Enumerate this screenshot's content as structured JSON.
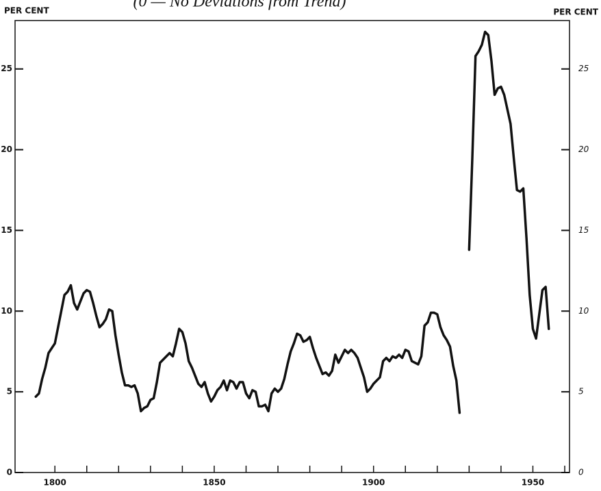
{
  "chart_data": {
    "type": "line",
    "title": "(0 — No Deviations from Trend)",
    "ylabel": "PER CENT",
    "y2label": "PER CENT",
    "x": [
      1794,
      1795,
      1796,
      1797,
      1798,
      1799,
      1800,
      1801,
      1802,
      1803,
      1804,
      1805,
      1806,
      1807,
      1808,
      1809,
      1810,
      1811,
      1812,
      1813,
      1814,
      1815,
      1816,
      1817,
      1818,
      1819,
      1820,
      1821,
      1822,
      1823,
      1824,
      1825,
      1826,
      1827,
      1828,
      1829,
      1830,
      1831,
      1832,
      1833,
      1834,
      1835,
      1836,
      1837,
      1838,
      1839,
      1840,
      1841,
      1842,
      1843,
      1844,
      1845,
      1846,
      1847,
      1848,
      1849,
      1850,
      1851,
      1852,
      1853,
      1854,
      1855,
      1856,
      1857,
      1858,
      1859,
      1860,
      1861,
      1862,
      1863,
      1864,
      1865,
      1866,
      1867,
      1868,
      1869,
      1870,
      1871,
      1872,
      1873,
      1874,
      1875,
      1876,
      1877,
      1878,
      1879,
      1880,
      1881,
      1882,
      1883,
      1884,
      1885,
      1886,
      1887,
      1888,
      1889,
      1890,
      1891,
      1892,
      1893,
      1894,
      1895,
      1896,
      1897,
      1898,
      1899,
      1900,
      1901,
      1902,
      1903,
      1904,
      1905,
      1906,
      1907,
      1908,
      1909,
      1910,
      1911,
      1912,
      1913,
      1914,
      1915,
      1916,
      1917,
      1918,
      1919,
      1920,
      1921,
      1922,
      1923,
      1924,
      1925,
      1926,
      1927,
      1928,
      1929,
      1930,
      1931,
      1932,
      1933,
      1934,
      1935,
      1936,
      1937,
      1938,
      1939,
      1940,
      1941,
      1942,
      1943,
      1944,
      1945,
      1946,
      1947,
      1948,
      1949,
      1950,
      1951,
      1952,
      1953,
      1954,
      1955
    ],
    "series": [
      {
        "color": "#111111",
        "values": [
          4.7,
          4.9,
          5.8,
          6.5,
          7.4,
          7.7,
          8.0,
          9.0,
          10.0,
          11.0,
          11.2,
          11.6,
          10.5,
          10.1,
          10.6,
          11.1,
          11.3,
          11.2,
          10.5,
          9.7,
          9.0,
          9.2,
          9.5,
          10.1,
          10.0,
          8.5,
          7.3,
          6.2,
          5.4,
          5.4,
          5.3,
          5.4,
          4.9,
          3.8,
          4.0,
          4.1,
          4.5,
          4.6,
          5.6,
          6.8,
          7.0,
          7.2,
          7.4,
          7.2,
          8.0,
          8.9,
          8.7,
          8.0,
          6.9,
          6.5,
          6.0,
          5.5,
          5.3,
          5.6,
          4.9,
          4.4,
          4.7,
          5.1,
          5.3,
          5.7,
          5.1,
          5.7,
          5.6,
          5.2,
          5.6,
          5.6,
          4.9,
          4.6,
          5.1,
          5.0,
          4.1,
          4.1,
          4.2,
          3.8,
          4.9,
          5.2,
          5.0,
          5.2,
          5.8,
          6.7,
          7.5,
          8.0,
          8.6,
          8.5,
          8.1,
          8.2,
          8.4,
          7.7,
          7.1,
          6.6,
          6.1,
          6.2,
          6.0,
          6.3,
          7.3,
          6.8,
          7.2,
          7.6,
          7.4,
          7.6,
          7.4,
          7.1,
          6.5,
          5.9,
          5.0,
          5.2,
          5.5,
          5.7,
          5.9,
          6.9,
          7.1,
          6.9,
          7.2,
          7.1,
          7.3,
          7.1,
          7.6,
          7.5,
          6.9,
          6.8,
          6.7,
          7.2,
          9.1,
          9.3,
          9.9,
          9.9,
          9.8,
          9.0,
          8.5,
          8.2,
          7.8,
          6.6,
          5.7,
          3.7,
          null,
          null,
          13.8,
          19.5,
          25.8,
          26.1,
          26.5,
          27.3,
          27.1,
          25.5,
          23.4,
          23.8,
          23.9,
          23.4,
          22.5,
          21.6,
          19.5,
          17.5,
          17.4,
          17.6,
          14.5,
          11.0,
          8.9,
          8.3,
          9.8,
          11.3,
          11.5,
          8.9
        ]
      }
    ],
    "xlim": [
      1787.5,
      1961.5
    ],
    "xticks": [
      1800,
      1850,
      1900,
      1950
    ],
    "xminorticks": [
      1810,
      1820,
      1830,
      1840,
      1860,
      1870,
      1880,
      1890,
      1910,
      1920,
      1930,
      1940,
      1960
    ],
    "ylim": [
      0,
      28
    ],
    "yticks": [
      0,
      5,
      10,
      15,
      20,
      25
    ],
    "y2lim": [
      0,
      28
    ],
    "y2ticks": [
      0,
      5,
      10,
      15,
      20,
      25
    ],
    "grid": false
  }
}
